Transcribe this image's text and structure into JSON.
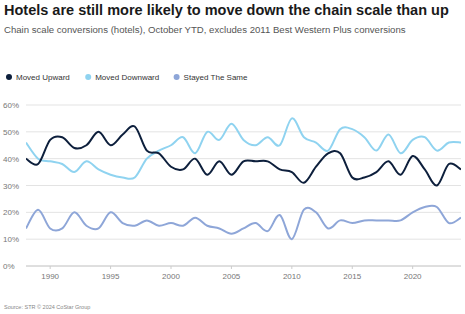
{
  "chart_data": {
    "type": "line",
    "title": "Hotels are still more likely to move down the chain scale than up",
    "subtitle": "Chain scale conversions (hotels), October YTD, excludes 2011 Best Western Plus conversions",
    "source": "Source: STR © 2024 CoStar Group",
    "x": [
      1988,
      1989,
      1990,
      1991,
      1992,
      1993,
      1994,
      1995,
      1996,
      1997,
      1998,
      1999,
      2000,
      2001,
      2002,
      2003,
      2004,
      2005,
      2006,
      2007,
      2008,
      2009,
      2010,
      2011,
      2012,
      2013,
      2014,
      2015,
      2016,
      2017,
      2018,
      2019,
      2020,
      2021,
      2022,
      2023,
      2024
    ],
    "series": [
      {
        "name": "Moved Upward",
        "color": "#0d1f3c",
        "values": [
          40,
          38,
          47,
          48,
          44,
          45,
          50,
          45,
          49,
          52,
          43,
          42,
          37,
          36,
          40,
          34,
          39,
          34,
          39,
          39,
          39,
          36,
          35,
          31,
          37,
          42,
          42,
          33,
          33,
          35,
          39,
          34,
          41,
          36,
          30,
          38,
          36
        ]
      },
      {
        "name": "Moved Downward",
        "color": "#8fd3f0",
        "values": [
          46,
          40,
          39,
          38,
          35,
          39,
          36,
          34,
          33,
          33,
          40,
          43,
          45,
          48,
          42,
          50,
          47,
          53,
          47,
          45,
          48,
          45,
          55,
          48,
          46,
          43,
          51,
          51,
          48,
          43,
          49,
          42,
          47,
          48,
          43,
          46,
          46
        ]
      },
      {
        "name": "Stayed The Same",
        "color": "#8ea6d8",
        "values": [
          14,
          21,
          14,
          14,
          20,
          15,
          14,
          20,
          16,
          15,
          17,
          15,
          16,
          15,
          18,
          15,
          14,
          12,
          14,
          16,
          13,
          19,
          10,
          21,
          20,
          14,
          17,
          16,
          17,
          17,
          17,
          17,
          20,
          22,
          22,
          16,
          18
        ]
      }
    ],
    "xlim": [
      1988,
      2024
    ],
    "xticks": [
      1990,
      1995,
      2000,
      2005,
      2010,
      2015,
      2020
    ],
    "ylim": [
      0,
      60
    ],
    "yticks": [
      {
        "value": 0,
        "label": "0%"
      },
      {
        "value": 10,
        "label": "10%"
      },
      {
        "value": 20,
        "label": "20%"
      },
      {
        "value": 30,
        "label": "30%"
      },
      {
        "value": 40,
        "label": "40%"
      },
      {
        "value": 50,
        "label": "50%"
      },
      {
        "value": 60,
        "label": "60%"
      }
    ],
    "grid": true,
    "legend": "top-left"
  }
}
